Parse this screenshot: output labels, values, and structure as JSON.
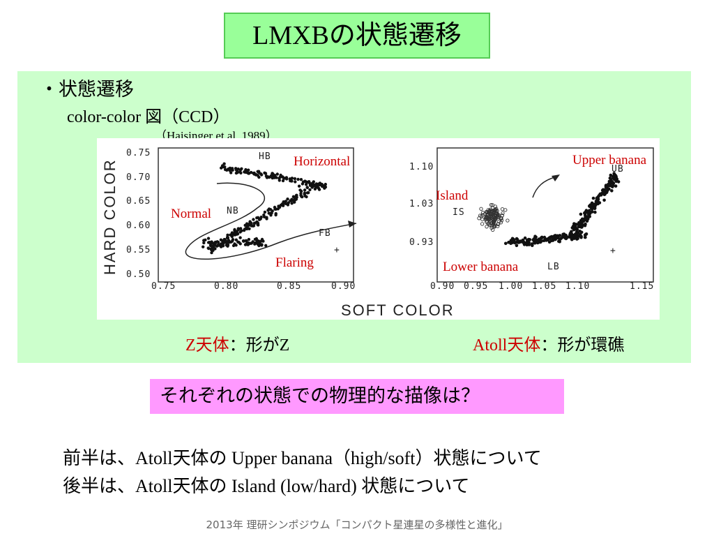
{
  "title": "LMXBの状態遷移",
  "bullet": "・状態遷移",
  "ccd_label": "color-color 図（CCD）",
  "citation": "（Haisinger et al. 1989）",
  "left_plot": {
    "ylabel": "HARD COLOR",
    "yticks": [
      "0.75",
      "0.70",
      "0.65",
      "0.60",
      "0.55",
      "0.50"
    ],
    "xticks": [
      "0.75",
      "0.80",
      "0.85",
      "0.90"
    ],
    "branch_codes": [
      "HB",
      "NB",
      "FB"
    ],
    "labels": {
      "horizontal": "Horizontal",
      "normal": "Normal",
      "flaring": "Flaring"
    }
  },
  "right_plot": {
    "yticks": [
      "1.10",
      "1.03",
      "0.93"
    ],
    "xticks": [
      "0.90",
      "0.95",
      "1.00",
      "1.05",
      "1.10",
      "1.15"
    ],
    "state_codes": [
      "UB",
      "IS",
      "LB"
    ],
    "labels": {
      "upper": "Upper banana",
      "island": "Island",
      "lower": "Lower banana"
    }
  },
  "xlabel": "SOFT COLOR",
  "captions": {
    "z_red": "Z天体",
    "z_rest": "：形がZ",
    "atoll_red": "Atoll天体",
    "atoll_rest": "：形が環礁"
  },
  "question": "それぞれの状態での物理的な描像は？",
  "line1": "前半は、Atoll天体の Upper banana（high/soft）状態について",
  "line2": "後半は、Atoll天体の Island (low/hard) 状態について",
  "footer": "2013年 理研シンポジウム「コンパクト星連星の多様性と進化」",
  "colors": {
    "title_bg": "#99ff99",
    "panel_bg": "#ccffcc",
    "question_bg": "#ff99ff",
    "accent": "#cc0000"
  }
}
